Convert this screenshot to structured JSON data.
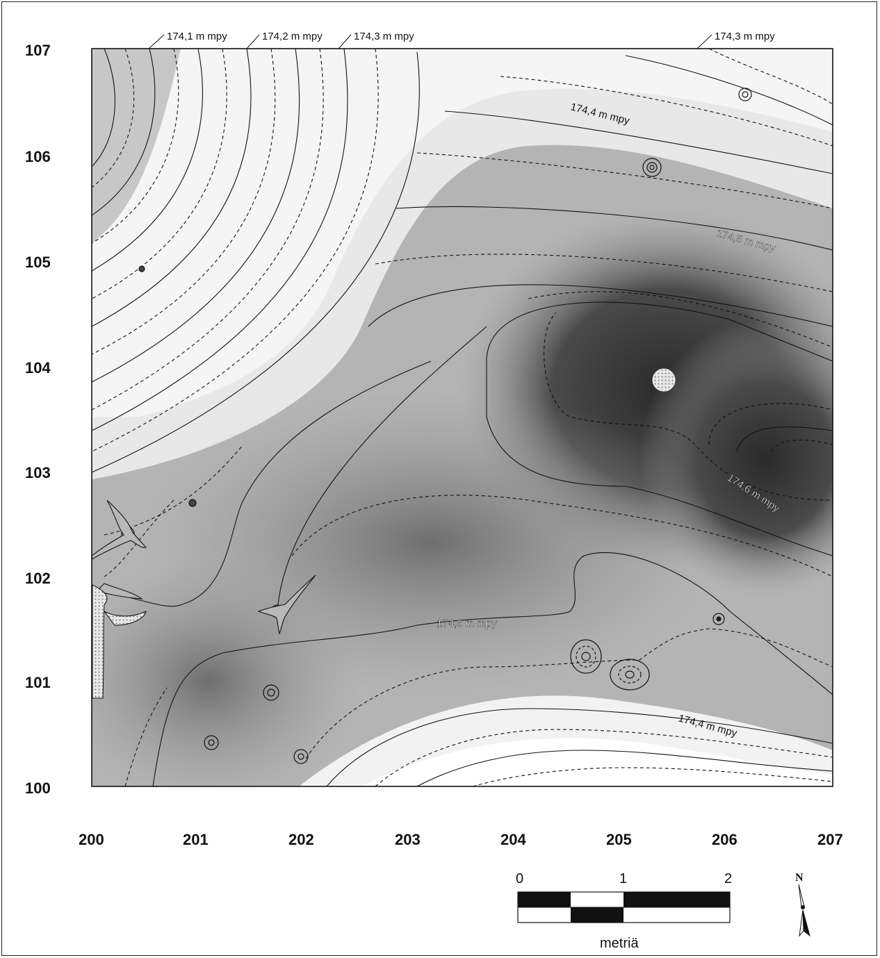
{
  "y_ticks": [
    "107",
    "106",
    "105",
    "104",
    "103",
    "102",
    "101",
    "100"
  ],
  "x_ticks": [
    "200",
    "201",
    "202",
    "203",
    "204",
    "205",
    "206",
    "207"
  ],
  "contour_labels": {
    "top_1": "174,1 m mpy",
    "top_2": "174,2 m mpy",
    "top_3": "174,3 m mpy",
    "top_4": "174,3 m mpy",
    "inner_1": "174,4 m mpy",
    "inner_2": "174,5 m mpy",
    "inner_3": "174,6 m mpy",
    "inner_4": "174,5 m mpy",
    "inner_5": "174,4 m mpy"
  },
  "scale_bar": {
    "ticks": [
      "0",
      "1",
      "2"
    ],
    "unit": "metriä"
  },
  "north_arrow": {
    "label": "N"
  },
  "colors": {
    "low": "#ffffff",
    "mid": "#9a9a9a",
    "high": "#2e2e2e",
    "line": "#111111"
  }
}
